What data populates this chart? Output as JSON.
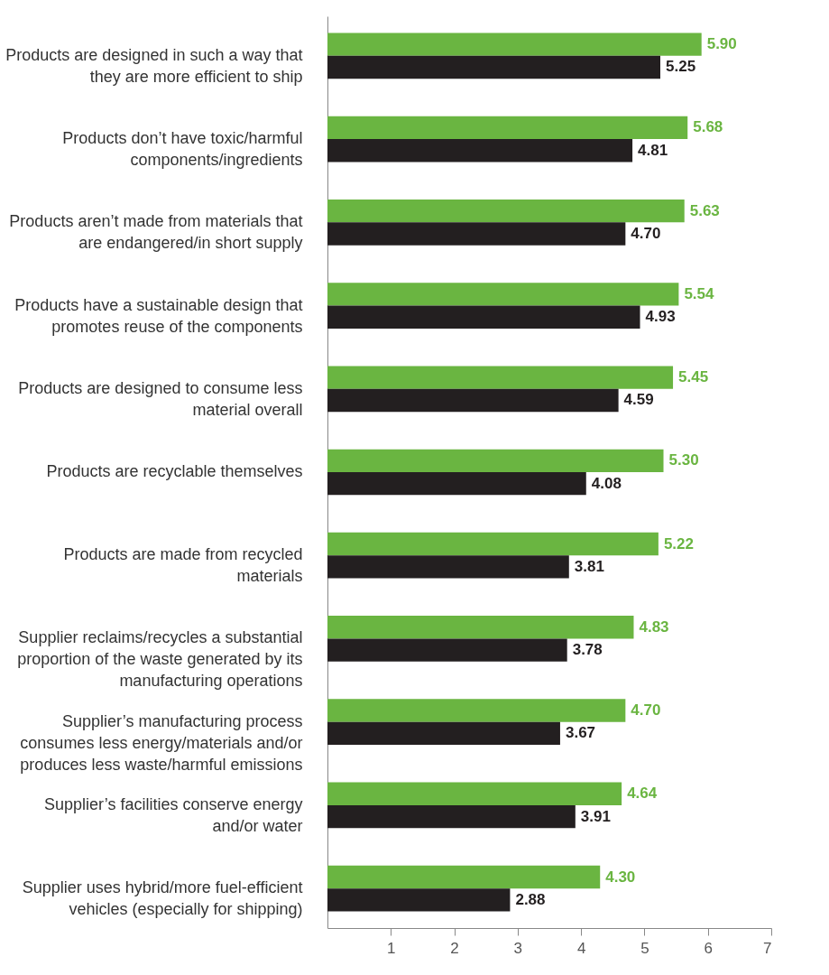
{
  "chart_data": {
    "type": "bar",
    "orientation": "horizontal",
    "categories": [
      "Products are designed in such a way that they are more efficient to ship",
      "Products don’t have toxic/harmful components/ingredients",
      "Products aren’t made from materials that are endangered/in short supply",
      "Products have a sustainable design that promotes reuse of the components",
      "Products are designed to consume less material overall",
      "Products are recyclable themselves",
      "Products are made from recycled materials",
      "Supplier reclaims/recycles a substantial proportion of the waste generated by its manufacturing operations",
      "Supplier’s manufacturing process consumes less energy/materials and/or produces less waste/harmful emissions",
      "Supplier’s facilities conserve energy and/or water",
      "Supplier uses hybrid/more fuel-efficient vehicles (especially for shipping)"
    ],
    "series": [
      {
        "color": "#6ab541",
        "values": [
          5.9,
          5.68,
          5.63,
          5.54,
          5.45,
          5.3,
          5.22,
          4.83,
          4.7,
          4.64,
          4.3
        ],
        "value_labels": [
          "5.90",
          "5.68",
          "5.63",
          "5.54",
          "5.45",
          "5.30",
          "5.22",
          "4.83",
          "4.70",
          "4.64",
          "4.30"
        ]
      },
      {
        "color": "#231f20",
        "values": [
          5.25,
          4.81,
          4.7,
          4.93,
          4.59,
          4.08,
          3.81,
          3.78,
          3.67,
          3.91,
          2.88
        ],
        "value_labels": [
          "5.25",
          "4.81",
          "4.70",
          "4.93",
          "4.59",
          "4.08",
          "3.81",
          "3.78",
          "3.67",
          "3.91",
          "2.88"
        ]
      }
    ],
    "xlim": [
      0,
      7
    ],
    "xticks": [
      1,
      2,
      3,
      4,
      5,
      6,
      7
    ],
    "grid": false,
    "legend": false
  }
}
